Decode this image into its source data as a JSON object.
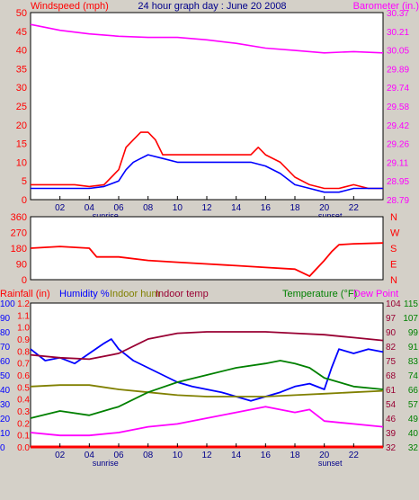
{
  "chart_data": [
    {
      "type": "line",
      "title": "24 hour graph day : June 20 2008",
      "left_label": "Windspeed (mph)",
      "right_label": "Barometer (in.)",
      "x_ticks": [
        "02",
        "04",
        "06",
        "08",
        "10",
        "12",
        "14",
        "16",
        "18",
        "20",
        "22"
      ],
      "x_markers": {
        "sunrise": "sunrise",
        "sunset": "sunset"
      },
      "left_ticks": [
        "0",
        "5",
        "10",
        "15",
        "20",
        "25",
        "30",
        "35",
        "40",
        "45",
        "50"
      ],
      "right_ticks": [
        "28.79",
        "28.95",
        "29.11",
        "29.26",
        "29.42",
        "29.58",
        "29.74",
        "29.89",
        "30.05",
        "30.21",
        "30.37"
      ],
      "xlim": [
        0,
        24
      ],
      "ylim_left": [
        0,
        50
      ],
      "ylim_right": [
        28.79,
        30.37
      ],
      "series": [
        {
          "axis": "left",
          "color": "#ff0000",
          "x": [
            0,
            1,
            2,
            3,
            4,
            5,
            6,
            6.5,
            7,
            7.5,
            8,
            8.5,
            9,
            10,
            11,
            12,
            13,
            14,
            15,
            15.5,
            16,
            17,
            18,
            19,
            20,
            21,
            22,
            23,
            24
          ],
          "y": [
            4,
            4,
            4,
            4,
            3.5,
            4,
            8,
            14,
            16,
            18,
            18,
            16,
            12,
            12,
            12,
            12,
            12,
            12,
            12,
            14,
            12,
            10,
            6,
            4,
            3,
            3,
            4,
            3,
            3
          ]
        },
        {
          "axis": "left",
          "color": "#0000ff",
          "x": [
            0,
            1,
            2,
            3,
            4,
            5,
            6,
            6.5,
            7,
            7.5,
            8,
            9,
            10,
            11,
            12,
            13,
            14,
            15,
            16,
            17,
            18,
            19,
            20,
            21,
            22,
            23,
            24
          ],
          "y": [
            3,
            3,
            3,
            3,
            3,
            3.5,
            5,
            8,
            10,
            11,
            12,
            11,
            10,
            10,
            10,
            10,
            10,
            10,
            9,
            7,
            4,
            3,
            2,
            2,
            3,
            3,
            3
          ]
        },
        {
          "axis": "right",
          "color": "#ff00ff",
          "x": [
            0,
            2,
            4,
            6,
            8,
            10,
            12,
            14,
            16,
            18,
            20,
            22,
            24
          ],
          "y": [
            30.27,
            30.22,
            30.19,
            30.17,
            30.16,
            30.16,
            30.14,
            30.11,
            30.07,
            30.05,
            30.03,
            30.04,
            30.03
          ]
        }
      ]
    },
    {
      "type": "line",
      "left_ticks": [
        "0",
        "90",
        "180",
        "270",
        "360"
      ],
      "right_ticks": [
        "N",
        "W",
        "S",
        "E",
        "N"
      ],
      "xlim": [
        0,
        24
      ],
      "ylim": [
        0,
        360
      ],
      "series": [
        {
          "color": "#ff0000",
          "x": [
            0,
            2,
            4,
            4.5,
            6,
            8,
            10,
            12,
            14,
            16,
            18,
            19,
            20,
            20.5,
            21,
            22,
            24
          ],
          "y": [
            180,
            190,
            180,
            130,
            130,
            110,
            100,
            90,
            80,
            70,
            60,
            20,
            110,
            160,
            200,
            205,
            210
          ]
        }
      ]
    },
    {
      "type": "line",
      "x_ticks": [
        "02",
        "04",
        "06",
        "08",
        "10",
        "12",
        "14",
        "16",
        "18",
        "20",
        "22"
      ],
      "x_markers": {
        "sunrise": "sunrise",
        "sunset": "sunset"
      },
      "legend": {
        "rainfall": "Rainfall (in)",
        "humidity": "Humidity %",
        "indoor_hum": "Indoor hum",
        "indoor_temp": "Indoor temp",
        "temperature": "Temperature (°F)",
        "dew_point": "Dew Point"
      },
      "rain_ticks": [
        "0.0",
        "0.1",
        "0.2",
        "0.3",
        "0.4",
        "0.5",
        "0.6",
        "0.7",
        "0.8",
        "0.9",
        "1.0",
        "1.1",
        "1.2"
      ],
      "humidity_ticks": [
        "0",
        "10",
        "20",
        "30",
        "40",
        "50",
        "60",
        "70",
        "80",
        "90",
        "100"
      ],
      "temp_ticks_inner": [
        "32",
        "39",
        "46",
        "54",
        "61",
        "68",
        "75",
        "82",
        "90",
        "97",
        "104"
      ],
      "temp_ticks_outer": [
        "32",
        "40",
        "49",
        "57",
        "66",
        "74",
        "83",
        "91",
        "99",
        "107",
        "115"
      ],
      "xlim": [
        0,
        24
      ],
      "ylim_humidity": [
        0,
        100
      ],
      "series": [
        {
          "name": "Rainfall (in)",
          "color": "#ff0000",
          "x": [
            0,
            24
          ],
          "y": [
            0,
            0
          ]
        },
        {
          "name": "Humidity %",
          "color": "#0000ff",
          "x": [
            0,
            1,
            2,
            3,
            4,
            5,
            5.5,
            6,
            7,
            8,
            9,
            10,
            11,
            12,
            13,
            14,
            15,
            16,
            17,
            18,
            19,
            20,
            20.5,
            21,
            22,
            23,
            24
          ],
          "y": [
            68,
            60,
            62,
            58,
            65,
            72,
            75,
            68,
            60,
            55,
            50,
            45,
            42,
            40,
            38,
            35,
            32,
            35,
            38,
            42,
            44,
            40,
            55,
            68,
            65,
            68,
            66
          ]
        },
        {
          "name": "Indoor hum",
          "color": "#808000",
          "x": [
            0,
            2,
            4,
            6,
            8,
            10,
            12,
            14,
            16,
            18,
            20,
            22,
            24
          ],
          "y": [
            42,
            43,
            43,
            40,
            38,
            36,
            35,
            35,
            35,
            36,
            37,
            38,
            39
          ]
        },
        {
          "name": "Indoor temp",
          "color": "#990033",
          "x": [
            0,
            2,
            4,
            6,
            8,
            10,
            12,
            14,
            16,
            18,
            20,
            22,
            24
          ],
          "y": [
            64,
            62,
            61,
            65,
            75,
            79,
            80,
            80,
            80,
            79,
            78,
            76,
            74
          ]
        },
        {
          "name": "Temperature (°F)",
          "color": "#008000",
          "x": [
            0,
            2,
            4,
            6,
            8,
            10,
            12,
            14,
            16,
            17,
            18,
            19,
            20,
            22,
            24
          ],
          "y": [
            20,
            25,
            22,
            28,
            38,
            45,
            50,
            55,
            58,
            60,
            58,
            55,
            48,
            42,
            40
          ]
        },
        {
          "name": "Dew Point",
          "color": "#ff00ff",
          "x": [
            0,
            2,
            4,
            6,
            8,
            10,
            12,
            14,
            16,
            18,
            19,
            20,
            22,
            24
          ],
          "y": [
            10,
            8,
            8,
            10,
            14,
            16,
            20,
            24,
            28,
            24,
            26,
            18,
            16,
            14
          ]
        }
      ]
    }
  ]
}
